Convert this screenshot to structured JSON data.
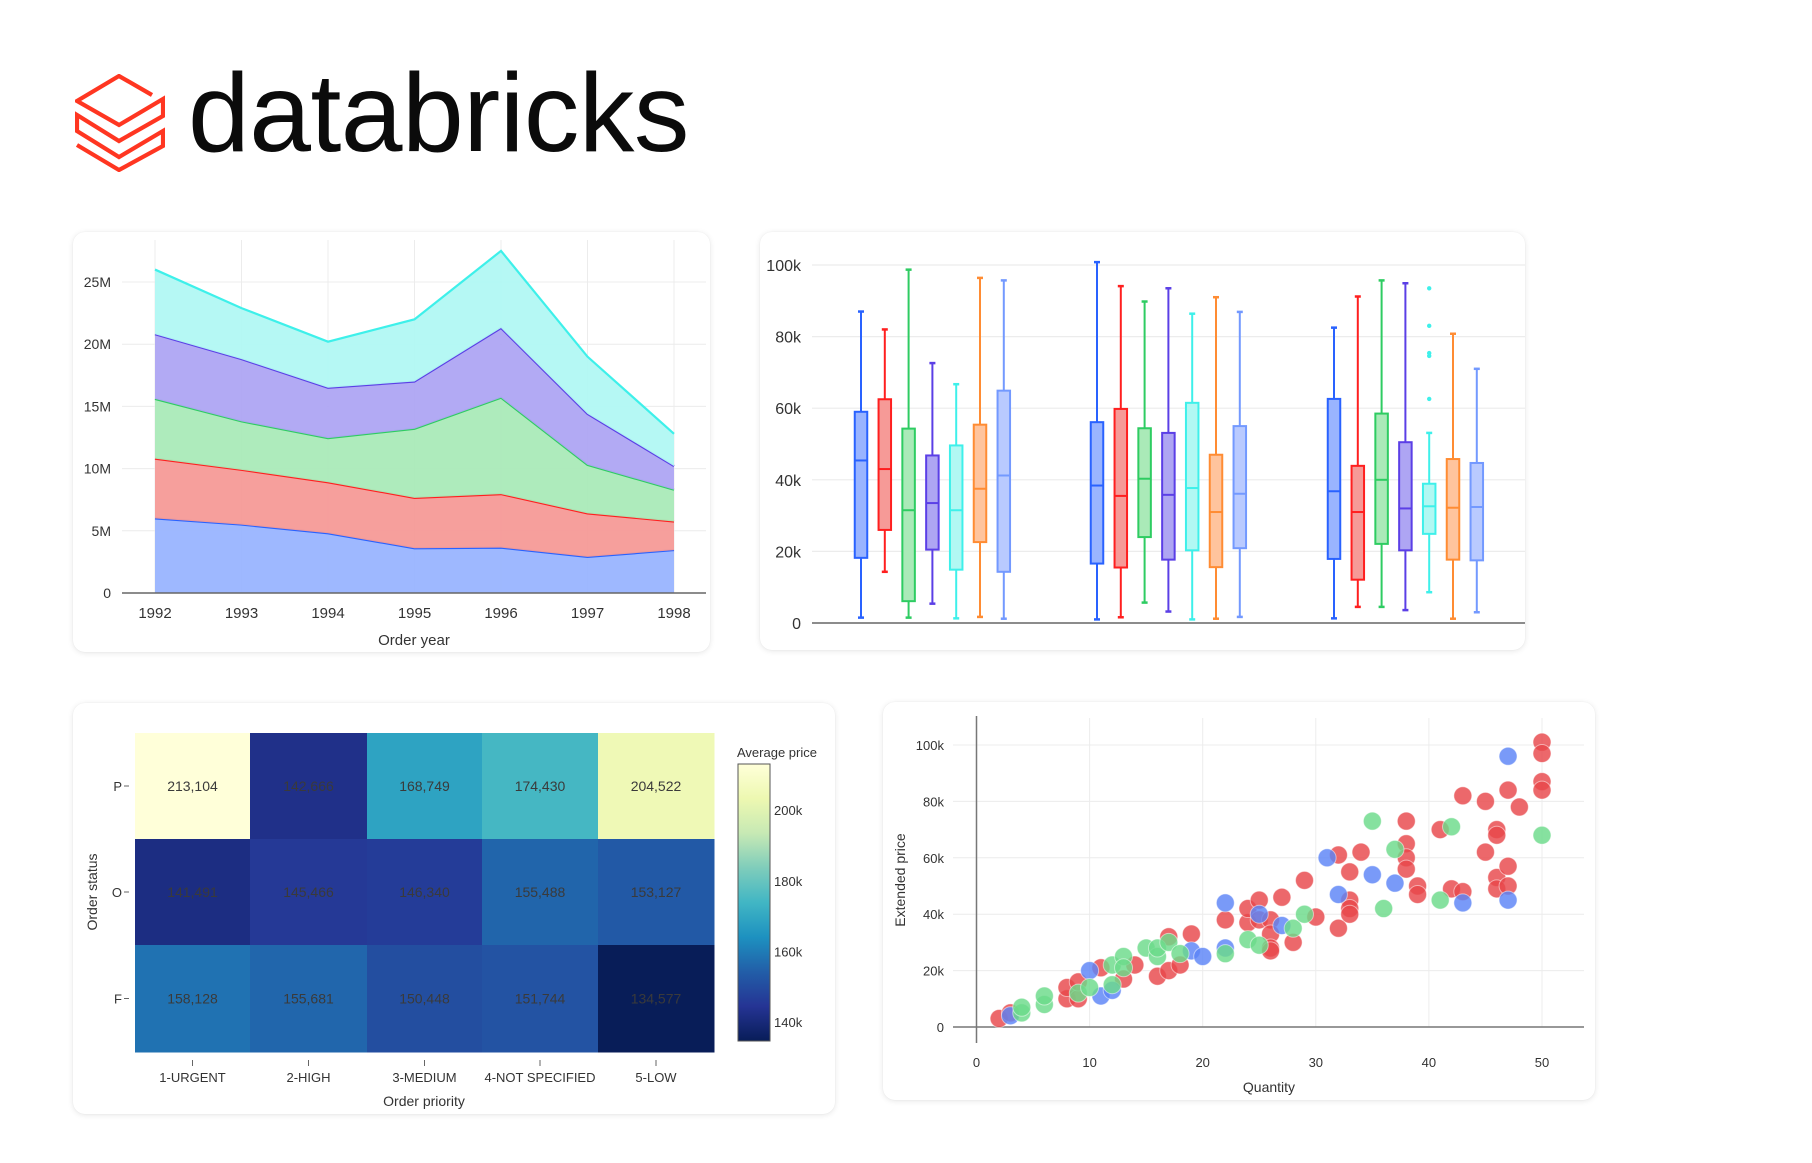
{
  "brand": {
    "name": "databricks",
    "logo_color": "#ff3621"
  },
  "chart_data": [
    {
      "type": "area",
      "stacked": true,
      "xlabel": "Order year",
      "ylabel": "",
      "x": [
        "1992",
        "1993",
        "1994",
        "1995",
        "1996",
        "1997",
        "1998"
      ],
      "yticks": [
        "0",
        "5M",
        "10M",
        "15M",
        "20M",
        "25M"
      ],
      "ylim": [
        0,
        28000000
      ],
      "grid": true,
      "series": [
        {
          "color": "#2962ff",
          "fill": "#99b4ff",
          "values": [
            6000000.0,
            5500000.0,
            4800000.0,
            3600000.0,
            3650000.0,
            2900000.0,
            3450000.0
          ]
        },
        {
          "color": "#ff1f1f",
          "fill": "#f69a97",
          "values": [
            4800000.0,
            4400000.0,
            4100000.0,
            4050000.0,
            4300000.0,
            3500000.0,
            2300000.0
          ]
        },
        {
          "color": "#2ecc62",
          "fill": "#aaeab8",
          "values": [
            4800000.0,
            3900000.0,
            3550000.0,
            5550000.0,
            7750000.0,
            3900000.0,
            2550000.0
          ]
        },
        {
          "color": "#5b3fe6",
          "fill": "#aea5f3",
          "values": [
            5200000.0,
            5000000.0,
            4050000.0,
            3800000.0,
            5600000.0,
            4100000.0,
            1900000.0
          ]
        },
        {
          "color": "#3ef0ea",
          "fill": "#b1f8f3",
          "values": [
            5200000.0,
            4100000.0,
            3700000.0,
            5000000.0,
            6200000.0,
            4600000.0,
            2600000.0
          ]
        }
      ]
    },
    {
      "type": "box",
      "yticks": [
        "0",
        "20k",
        "40k",
        "60k",
        "80k",
        "100k"
      ],
      "ylim": [
        0,
        100000
      ],
      "grid": true,
      "stats_order": [
        "min",
        "q1",
        "median",
        "q3",
        "max"
      ],
      "series": [
        {
          "color": "#2962ff",
          "fill": "#99b4ff",
          "groups": [
            [
              1500,
              18200,
              45400,
              59000,
              87000
            ],
            [
              1000,
              16600,
              38400,
              56100,
              100800
            ],
            [
              1300,
              17900,
              36800,
              62600,
              82500
            ]
          ]
        },
        {
          "color": "#ff1f1f",
          "fill": "#f69a97",
          "groups": [
            [
              14300,
              26000,
              43000,
              62500,
              82000
            ],
            [
              1600,
              15500,
              35500,
              59800,
              94100
            ],
            [
              4500,
              12100,
              31000,
              43900,
              91200
            ]
          ]
        },
        {
          "color": "#2ecc62",
          "fill": "#aaeab8",
          "groups": [
            [
              1500,
              6100,
              31500,
              54300,
              98700
            ],
            [
              5700,
              24000,
              40300,
              54400,
              89800
            ],
            [
              4500,
              22100,
              40000,
              58500,
              95700
            ]
          ]
        },
        {
          "color": "#5b3fe6",
          "fill": "#aea5f3",
          "groups": [
            [
              5400,
              20500,
              33500,
              46800,
              72600
            ],
            [
              3200,
              17700,
              35800,
              53100,
              93500
            ],
            [
              3600,
              20300,
              32000,
              50500,
              94900
            ]
          ]
        },
        {
          "color": "#3ef0ea",
          "fill": "#b1f8f3",
          "groups": [
            [
              1300,
              14900,
              31500,
              49600,
              66700
            ],
            [
              1000,
              20300,
              37700,
              61500,
              86400
            ],
            [
              8600,
              24900,
              32600,
              38900,
              53100
            ]
          ],
          "outliers": [
            [],
            [],
            [
              62600,
              74600,
              75400,
              83000,
              93500
            ]
          ]
        },
        {
          "color": "#ff8c33",
          "fill": "#ffc49d",
          "groups": [
            [
              1700,
              22600,
              37500,
              55400,
              96400
            ],
            [
              1200,
              15600,
              31000,
              47000,
              91000
            ],
            [
              1200,
              17700,
              32200,
              45800,
              80800
            ]
          ]
        },
        {
          "color": "#7399ff",
          "fill": "#b9caff",
          "groups": [
            [
              1200,
              14300,
              41200,
              64900,
              95700
            ],
            [
              1700,
              20900,
              36100,
              55000,
              86900
            ],
            [
              3000,
              17500,
              32400,
              44700,
              71000
            ]
          ]
        }
      ]
    },
    {
      "type": "heatmap",
      "xlabel": "Order priority",
      "ylabel": "Order status",
      "x": [
        "1-URGENT",
        "2-HIGH",
        "3-MEDIUM",
        "4-NOT SPECIFIED",
        "5-LOW"
      ],
      "y": [
        "P",
        "O",
        "F"
      ],
      "values": [
        [
          213104,
          142666,
          168749,
          174430,
          204522
        ],
        [
          141491,
          145466,
          146340,
          155488,
          153127
        ],
        [
          158128,
          155681,
          150448,
          151744,
          134577
        ]
      ],
      "labels": [
        [
          "213,104",
          "142,666",
          "168,749",
          "174,430",
          "204,522"
        ],
        [
          "141,491",
          "145,466",
          "146,340",
          "155,488",
          "153,127"
        ],
        [
          "158,128",
          "155,681",
          "150,448",
          "151,744",
          "134,577"
        ]
      ],
      "colorbar": {
        "title": "Average price",
        "ticks": [
          "140k",
          "160k",
          "180k",
          "200k"
        ],
        "tick_values": [
          140000,
          160000,
          180000,
          200000
        ]
      },
      "colorscale": [
        "#081d58",
        "#253494",
        "#225ea8",
        "#1d91c0",
        "#41b6c4",
        "#7fcdbb",
        "#c7e9b4",
        "#edf8b1",
        "#ffffd9"
      ]
    },
    {
      "type": "scatter",
      "xlabel": "Quantity",
      "ylabel": "Extended price",
      "xticks": [
        "0",
        "10",
        "20",
        "30",
        "40",
        "50"
      ],
      "yticks": [
        "0",
        "20k",
        "40k",
        "60k",
        "80k",
        "100k"
      ],
      "xlim": [
        0,
        50
      ],
      "ylim": [
        0,
        100000
      ],
      "grid": true,
      "series": [
        {
          "color": "#e8474b",
          "points": [
            [
              2,
              3000
            ],
            [
              3,
              5000
            ],
            [
              8,
              10000
            ],
            [
              8,
              14000
            ],
            [
              9,
              10000
            ],
            [
              9,
              16000
            ],
            [
              11,
              21000
            ],
            [
              13,
              17000
            ],
            [
              14,
              22000
            ],
            [
              16,
              18000
            ],
            [
              17,
              20000
            ],
            [
              17,
              32000
            ],
            [
              18,
              22000
            ],
            [
              19,
              33000
            ],
            [
              22,
              38000
            ],
            [
              24,
              37000
            ],
            [
              24,
              42000
            ],
            [
              25,
              45000
            ],
            [
              25,
              38000
            ],
            [
              26,
              38000
            ],
            [
              26,
              33000
            ],
            [
              26,
              28000
            ],
            [
              26,
              27000
            ],
            [
              27,
              46000
            ],
            [
              28,
              30000
            ],
            [
              29,
              52000
            ],
            [
              30,
              39000
            ],
            [
              32,
              35000
            ],
            [
              32,
              61000
            ],
            [
              33,
              55000
            ],
            [
              33,
              45000
            ],
            [
              33,
              42000
            ],
            [
              33,
              40000
            ],
            [
              34,
              62000
            ],
            [
              38,
              73000
            ],
            [
              38,
              65000
            ],
            [
              38,
              60000
            ],
            [
              38,
              56000
            ],
            [
              39,
              50000
            ],
            [
              39,
              47000
            ],
            [
              41,
              70000
            ],
            [
              42,
              49000
            ],
            [
              43,
              48000
            ],
            [
              43,
              82000
            ],
            [
              45,
              80000
            ],
            [
              45,
              62000
            ],
            [
              46,
              70000
            ],
            [
              46,
              68000
            ],
            [
              46,
              53000
            ],
            [
              46,
              49000
            ],
            [
              47,
              84000
            ],
            [
              47,
              57000
            ],
            [
              47,
              50000
            ],
            [
              48,
              78000
            ],
            [
              50,
              101000
            ],
            [
              50,
              97000
            ],
            [
              50,
              87000
            ],
            [
              50,
              84000
            ]
          ]
        },
        {
          "color": "#5b84f7",
          "points": [
            [
              3,
              4000
            ],
            [
              10,
              20000
            ],
            [
              11,
              11000
            ],
            [
              12,
              13000
            ],
            [
              19,
              27000
            ],
            [
              20,
              25000
            ],
            [
              22,
              44000
            ],
            [
              22,
              28000
            ],
            [
              25,
              40000
            ],
            [
              27,
              36000
            ],
            [
              31,
              60000
            ],
            [
              32,
              47000
            ],
            [
              35,
              54000
            ],
            [
              37,
              51000
            ],
            [
              43,
              44000
            ],
            [
              47,
              96000
            ],
            [
              47,
              45000
            ]
          ]
        },
        {
          "color": "#6bdb8a",
          "points": [
            [
              4,
              5000
            ],
            [
              4,
              7000
            ],
            [
              6,
              8000
            ],
            [
              6,
              11000
            ],
            [
              9,
              12000
            ],
            [
              10,
              14000
            ],
            [
              12,
              15000
            ],
            [
              12,
              22000
            ],
            [
              13,
              25000
            ],
            [
              13,
              21000
            ],
            [
              15,
              28000
            ],
            [
              16,
              25000
            ],
            [
              16,
              28000
            ],
            [
              17,
              30000
            ],
            [
              18,
              26000
            ],
            [
              22,
              26000
            ],
            [
              24,
              31000
            ],
            [
              25,
              29000
            ],
            [
              28,
              35000
            ],
            [
              29,
              40000
            ],
            [
              35,
              73000
            ],
            [
              36,
              42000
            ],
            [
              37,
              63000
            ],
            [
              41,
              45000
            ],
            [
              42,
              71000
            ],
            [
              50,
              68000
            ]
          ]
        }
      ]
    }
  ]
}
